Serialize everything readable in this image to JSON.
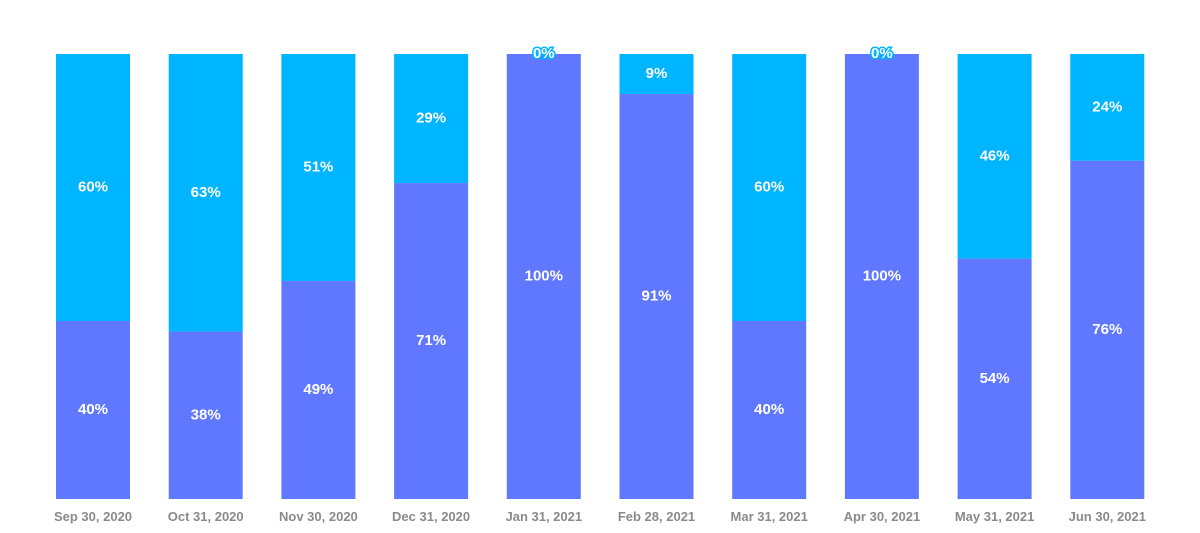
{
  "chart_data": {
    "type": "bar",
    "stacked": true,
    "normalized": true,
    "title": "",
    "xlabel": "",
    "ylabel": "",
    "ylim": [
      0,
      100
    ],
    "grid": false,
    "legend": "none",
    "categories": [
      "Sep 30, 2020",
      "Oct 31, 2020",
      "Nov 30, 2020",
      "Dec 31, 2020",
      "Jan 31, 2021",
      "Feb 28, 2021",
      "Mar 31, 2021",
      "Apr 30, 2021",
      "May 31, 2021",
      "Jun 30, 2021"
    ],
    "series": [
      {
        "color": "#6078ff",
        "values": [
          40,
          38,
          49,
          71,
          100,
          91,
          40,
          100,
          54,
          76
        ],
        "labels": [
          "40%",
          "38%",
          "49%",
          "71%",
          "100%",
          "91%",
          "40%",
          "100%",
          "54%",
          "76%"
        ]
      },
      {
        "color": "#00b5ff",
        "values": [
          60,
          63,
          51,
          29,
          0,
          9,
          60,
          0,
          46,
          24
        ],
        "labels": [
          "60%",
          "63%",
          "51%",
          "29%",
          "0%",
          "9%",
          "60%",
          "0%",
          "46%",
          "24%"
        ]
      }
    ]
  }
}
